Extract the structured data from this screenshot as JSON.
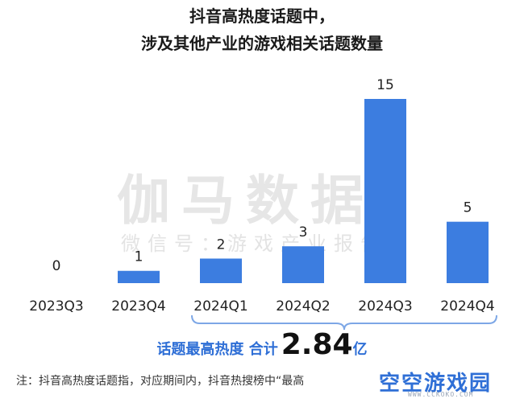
{
  "chart_data": {
    "type": "bar",
    "title": "抖音高热度话题中，",
    "subtitle": "涉及其他产业的游戏相关话题数量",
    "categories": [
      "2023Q3",
      "2023Q4",
      "2024Q1",
      "2024Q2",
      "2024Q3",
      "2024Q4"
    ],
    "values": [
      0,
      1,
      2,
      3,
      15,
      5
    ],
    "ylim": [
      0,
      15
    ],
    "grid": false,
    "bar_color": "#3c7de0",
    "bracket_color": "#7da7e6",
    "bracket_categories": [
      "2024Q1",
      "2024Q2",
      "2024Q3",
      "2024Q4"
    ]
  },
  "watermark": {
    "main": "伽马数据",
    "sub": "微信号：游戏产业报告"
  },
  "summary": {
    "label": "话题最高热度 合计",
    "value": "2.84",
    "unit": "亿"
  },
  "note": "注：抖音高热度话题指，对应期间内，抖音热搜榜中“最高",
  "logo": {
    "text": "空空游戏园",
    "sub": "WWW.CCKOKO.COM"
  }
}
